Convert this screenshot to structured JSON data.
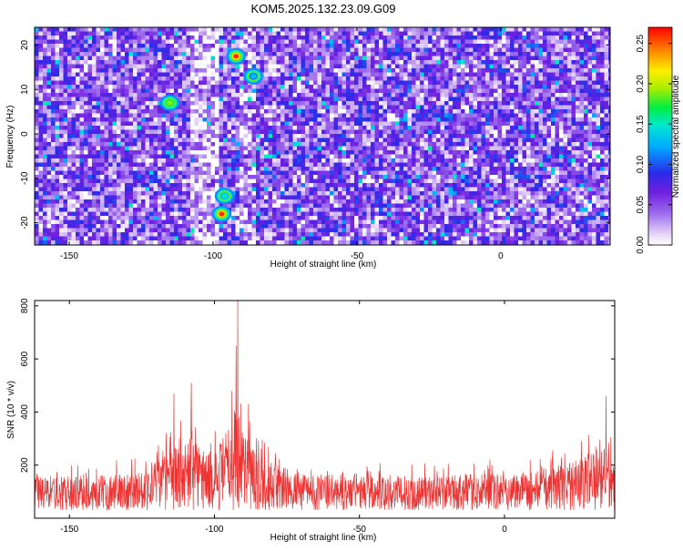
{
  "title": "KOM5.2025.132.23.09.G09",
  "chart_data": [
    {
      "type": "heatmap",
      "xlabel": "Height of straight line (km)",
      "ylabel": "Frequency (Hz)",
      "xlim": [
        -162,
        38
      ],
      "ylim": [
        -25,
        24
      ],
      "x_ticks": [
        -150,
        -100,
        -50,
        0
      ],
      "y_ticks": [
        -20,
        -10,
        0,
        10,
        20
      ],
      "colorbar": {
        "label": "Normalized spectral amplitude",
        "range": [
          0,
          0.27
        ],
        "ticks": [
          0.0,
          0.05,
          0.1,
          0.15,
          0.2,
          0.25
        ],
        "tick_labels": [
          "0.00",
          "0.05",
          "0.10",
          "0.15",
          "0.20",
          "0.25"
        ]
      },
      "hotspots": [
        {
          "x": -92,
          "y": 17.5,
          "value": 0.26
        },
        {
          "x": -97,
          "y": -18,
          "value": 0.26
        },
        {
          "x": -115,
          "y": 7,
          "value": 0.19
        },
        {
          "x": -96,
          "y": -14,
          "value": 0.15
        },
        {
          "x": -86,
          "y": 13,
          "value": 0.13
        }
      ]
    },
    {
      "type": "line",
      "xlabel": "Height of straight line (km)",
      "ylabel": "SNR (10 * v/v)",
      "xlim": [
        -162,
        38
      ],
      "ylim": [
        0,
        820
      ],
      "x_ticks": [
        -150,
        -100,
        -50,
        0
      ],
      "y_ticks": [
        200,
        400,
        600,
        800
      ],
      "color": "#ee3333",
      "envelope_x": [
        -162,
        -140,
        -125,
        -115,
        -108,
        -100,
        -92,
        -85,
        -70,
        -50,
        -30,
        -10,
        10,
        25,
        35,
        38
      ],
      "envelope_y": [
        150,
        150,
        170,
        250,
        300,
        230,
        420,
        220,
        160,
        150,
        150,
        155,
        170,
        210,
        260,
        200
      ],
      "peaks": [
        {
          "x": -92,
          "y": 820
        },
        {
          "x": -92.5,
          "y": 650
        },
        {
          "x": -108,
          "y": 510
        },
        {
          "x": -114,
          "y": 470
        },
        {
          "x": -94,
          "y": 480
        },
        {
          "x": 35,
          "y": 460
        }
      ]
    }
  ]
}
